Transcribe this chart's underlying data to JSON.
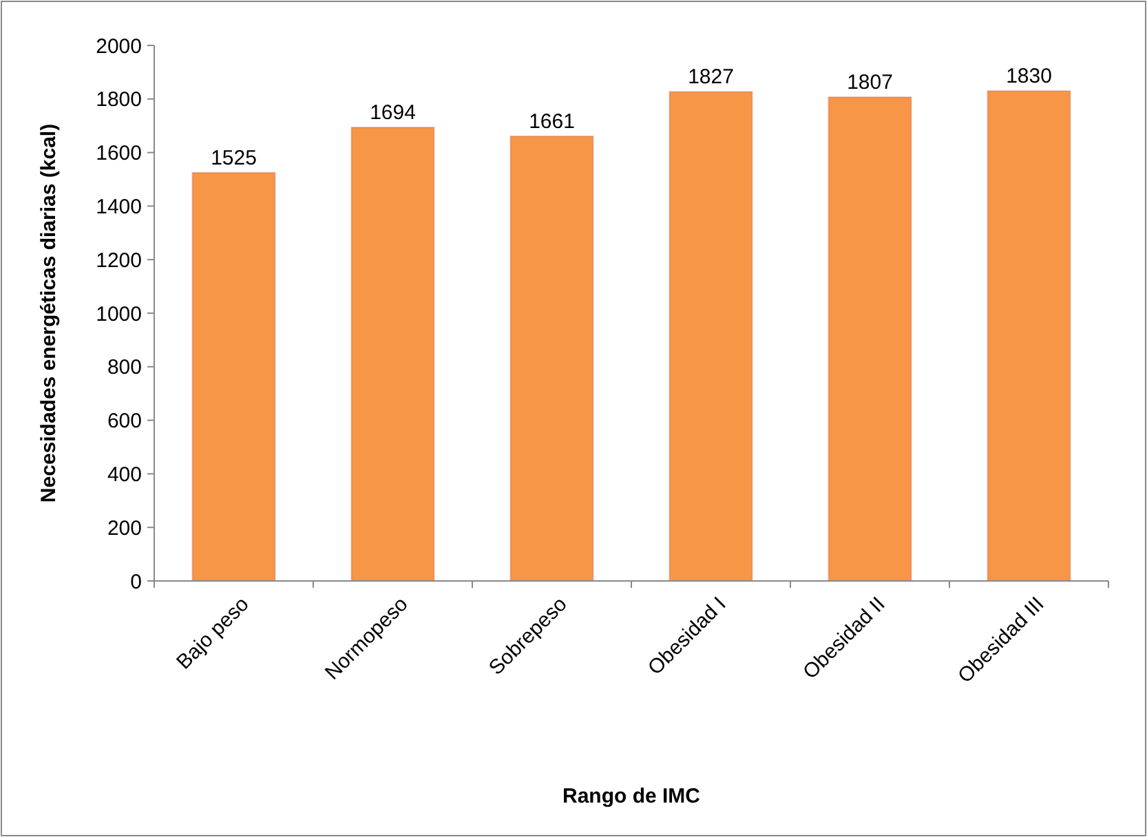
{
  "chart_data": {
    "type": "bar",
    "xlabel": "Rango de IMC",
    "ylabel": "Necesidades energéticas diarias (kcal)",
    "categories": [
      "Bajo peso",
      "Normopeso",
      "Sobrepeso",
      "Obesidad I",
      "Obesidad II",
      "Obesidad III"
    ],
    "values": [
      1525,
      1694,
      1661,
      1827,
      1807,
      1830
    ],
    "color": "#f79646",
    "data_labels": true,
    "ylim": [
      0,
      2000
    ],
    "yticks": [
      0,
      200,
      400,
      600,
      800,
      1000,
      1200,
      1400,
      1600,
      1800,
      2000
    ],
    "grid": false
  }
}
